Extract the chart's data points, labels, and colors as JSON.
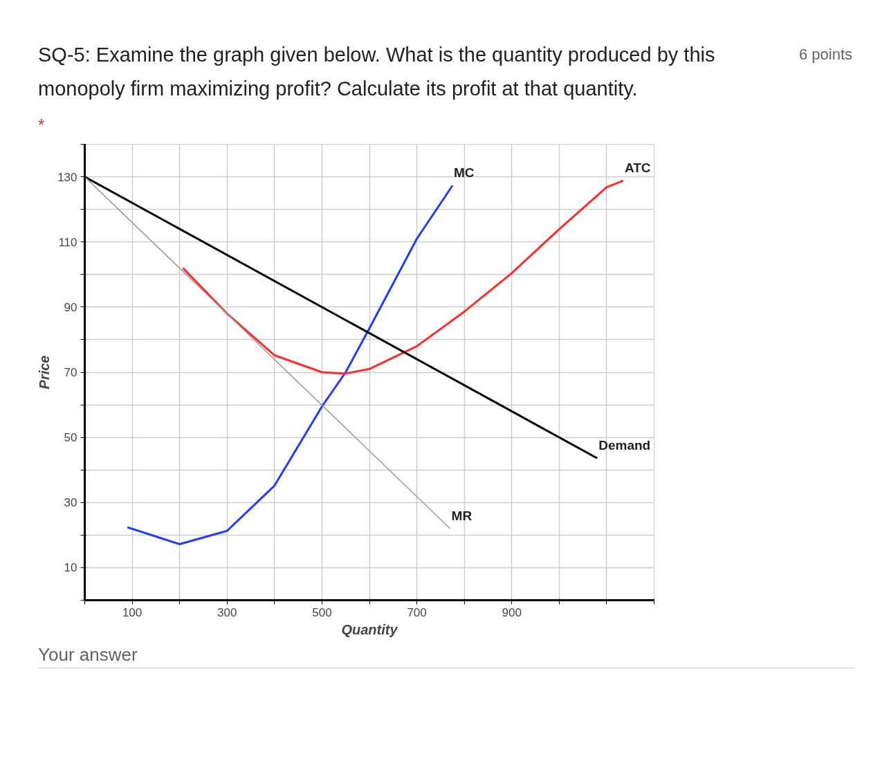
{
  "chart_data": {
    "type": "line",
    "title": "SQ-5: Examine the graph given below. What is the quantity produced by this monopoly firm maximizing profit? Calculate its profit at that quantity.",
    "annotations": [
      "6 points",
      "*",
      "Your answer"
    ],
    "xlabel": "Quantity",
    "ylabel": "Price",
    "series": [
      {
        "name": "MC",
        "color": "#1f3cff",
        "x": [
          90,
          200,
          300,
          400,
          500,
          550,
          600,
          700,
          775
        ],
        "values": [
          22.4,
          17.2,
          21.3,
          35.2,
          59.5,
          70,
          83.5,
          111,
          127.3
        ]
      },
      {
        "name": "ATC",
        "color": "#ff2a2a",
        "x": [
          207,
          300,
          400,
          500,
          550,
          600,
          700,
          800,
          899,
          999,
          1100,
          1135
        ],
        "values": [
          102,
          88,
          75.2,
          70,
          69.6,
          71,
          78,
          88.6,
          100.3,
          113.8,
          126.8,
          128.8
        ]
      },
      {
        "name": "Demand",
        "color": "#000000",
        "x": [
          0,
          1080
        ],
        "values": [
          130,
          43.6
        ]
      },
      {
        "name": "MR",
        "color": "#999999",
        "x": [
          0,
          770
        ],
        "values": [
          130,
          22
        ]
      }
    ],
    "xlim": [
      0,
      1200
    ],
    "ylim": [
      0,
      140
    ],
    "xticks": [
      {
        "value": 0,
        "label": null
      },
      100,
      {
        "value": 200,
        "label": null
      },
      300,
      {
        "value": 400,
        "label": null
      },
      500,
      {
        "value": 600,
        "label": null
      },
      700,
      {
        "value": 800,
        "label": null
      },
      900,
      {
        "value": 1000,
        "label": null
      },
      {
        "value": 1100,
        "label": null
      },
      {
        "value": 1200,
        "label": null
      }
    ],
    "yticks": [
      {
        "value": 0,
        "label": null
      },
      10,
      {
        "value": 20,
        "label": null
      },
      30,
      {
        "value": 40,
        "label": null
      },
      50,
      {
        "value": 60,
        "label": null
      },
      70,
      {
        "value": 80,
        "label": null
      },
      90,
      {
        "value": 100,
        "label": null
      },
      110,
      {
        "value": 120,
        "label": null
      },
      130,
      {
        "value": 140,
        "label": null
      }
    ],
    "grid": true
  }
}
